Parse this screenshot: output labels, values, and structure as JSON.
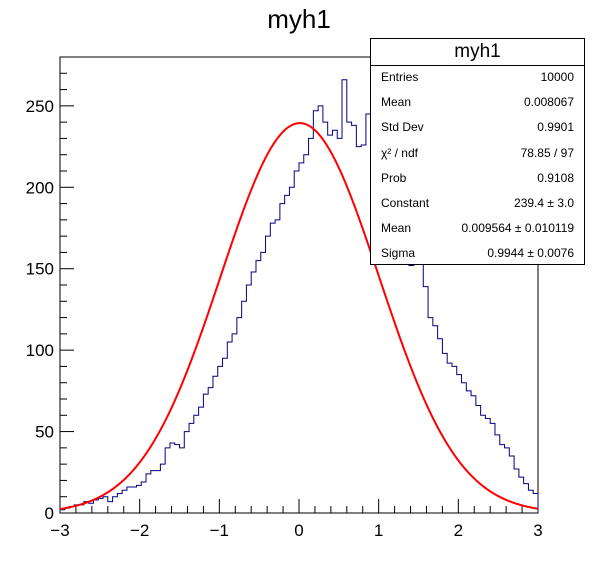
{
  "title": "myh1",
  "stats": {
    "title": "myh1",
    "rows": [
      {
        "label": "Entries",
        "value": "10000"
      },
      {
        "label": "Mean",
        "value": "0.008067"
      },
      {
        "label": "Std Dev",
        "value": "0.9901"
      },
      {
        "label": "χ² / ndf",
        "value": "78.85 / 97"
      },
      {
        "label": "Prob",
        "value": "0.9108"
      },
      {
        "label": "Constant",
        "value": "239.4 ± 3.0"
      },
      {
        "label": "Mean",
        "value": "0.009564 ± 0.010119"
      },
      {
        "label": "Sigma",
        "value": "0.9944 ± 0.0076"
      }
    ]
  },
  "colors": {
    "histogram": "#000080",
    "fit": "#ff0000",
    "axis": "#000000"
  },
  "chart_data": {
    "type": "bar",
    "title": "myh1",
    "xlabel": "",
    "ylabel": "",
    "xlim": [
      -3,
      3
    ],
    "ylim": [
      0,
      280
    ],
    "xticks": [
      -3,
      -2,
      -1,
      0,
      1,
      2,
      3
    ],
    "yticks": [
      0,
      50,
      100,
      150,
      200,
      250
    ],
    "bin_edges_range": [
      -3,
      3
    ],
    "nbins": 100,
    "series": [
      {
        "values": [
          2,
          3,
          4,
          5,
          5,
          7,
          6,
          8,
          9,
          10,
          7,
          10,
          12,
          14,
          16,
          16,
          17,
          19,
          24,
          26,
          26,
          30,
          40,
          43,
          42,
          40,
          50,
          55,
          60,
          65,
          73,
          77,
          84,
          90,
          95,
          105,
          110,
          120,
          130,
          140,
          148,
          155,
          160,
          170,
          178,
          180,
          190,
          195,
          200,
          210,
          215,
          220,
          230,
          247,
          250,
          240,
          232,
          235,
          230,
          266,
          240,
          238,
          225,
          226,
          245,
          250,
          260,
          234,
          224,
          213,
          197,
          188,
          192,
          152,
          165,
          155,
          139,
          120,
          115,
          107,
          98,
          92,
          90,
          85,
          80,
          75,
          72,
          66,
          60,
          58,
          55,
          48,
          42,
          40,
          35,
          27,
          22,
          18,
          14,
          12
        ]
      }
    ],
    "fit": {
      "type": "gaussian",
      "constant": 239.4,
      "mean": 0.009564,
      "sigma": 0.9944
    },
    "grid": false,
    "legend": "top-right"
  }
}
